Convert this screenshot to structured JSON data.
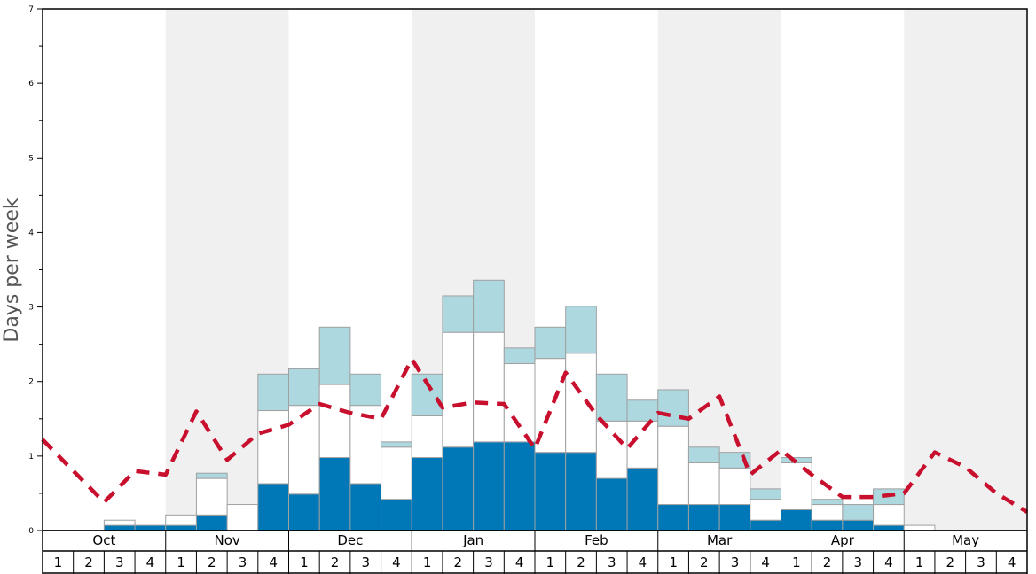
{
  "chart_data": {
    "type": "bar",
    "ylabel": "Days per week",
    "ylim": [
      0,
      7
    ],
    "yticks": [
      "0",
      "1",
      "2",
      "3",
      "4",
      "5",
      "6",
      "7"
    ],
    "months": [
      "Oct",
      "Nov",
      "Dec",
      "Jan",
      "Feb",
      "Mar",
      "Apr",
      "May"
    ],
    "weeks": [
      "1",
      "2",
      "3",
      "4"
    ],
    "colors": {
      "bottom": "#0077b6",
      "middle": "#ffffff",
      "top": "#add8e0",
      "line": "#c8102e",
      "shade": "#f0f0f0"
    },
    "series": [
      {
        "values": [
          0,
          0,
          0.07,
          0.07,
          0.07,
          0.21,
          0,
          0.63,
          0.49,
          0.98,
          0.63,
          0.42,
          0.98,
          1.12,
          1.19,
          1.19,
          1.05,
          1.05,
          0.7,
          0.84,
          0.35,
          0.35,
          0.35,
          0.14,
          0.28,
          0.14,
          0.14,
          0.07,
          0,
          0,
          0,
          0
        ]
      },
      {
        "values": [
          0,
          0,
          0.07,
          0,
          0.14,
          0.49,
          0.35,
          0.98,
          1.19,
          0.98,
          1.05,
          0.7,
          0.56,
          1.54,
          1.47,
          1.05,
          1.26,
          1.33,
          0.77,
          0.63,
          1.05,
          0.56,
          0.49,
          0.28,
          0.63,
          0.21,
          0,
          0.28,
          0.07,
          0,
          0,
          0
        ]
      },
      {
        "values": [
          0,
          0,
          0,
          0,
          0,
          0.07,
          0,
          0.49,
          0.49,
          0.77,
          0.42,
          0.07,
          0.56,
          0.49,
          0.7,
          0.21,
          0.42,
          0.63,
          0.63,
          0.28,
          0.49,
          0.21,
          0.21,
          0.14,
          0.07,
          0.07,
          0.21,
          0.21,
          0,
          0,
          0,
          0
        ]
      }
    ],
    "line": {
      "values": [
        1.22,
        0.8,
        0.38,
        0.8,
        0.75,
        1.6,
        0.95,
        1.3,
        1.42,
        1.7,
        1.58,
        1.5,
        2.3,
        1.65,
        1.72,
        1.7,
        1.1,
        2.12,
        1.55,
        1.1,
        1.58,
        1.5,
        1.8,
        0.75,
        1.08,
        0.75,
        0.45,
        0.45,
        0.5,
        1.05,
        0.85,
        0.5,
        0.25
      ]
    }
  }
}
